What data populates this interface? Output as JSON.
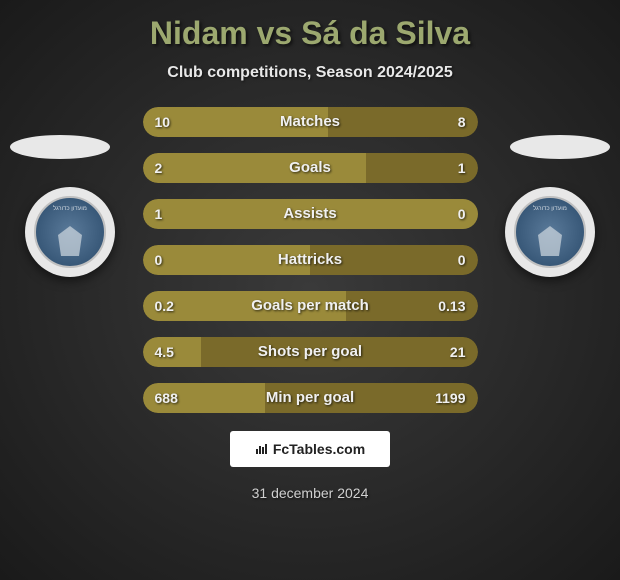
{
  "title": "Nidam vs Sá da Silva",
  "subtitle": "Club competitions, Season 2024/2025",
  "date": "31 december 2024",
  "brand": "FcTables.com",
  "colors": {
    "bar_primary": "#9a8a3a",
    "bar_secondary": "#7a6a2a",
    "bar_bg": "#2a2a2a",
    "title_color": "#9ca86f",
    "text_color": "#f0f0f0"
  },
  "stats": [
    {
      "label": "Matches",
      "left_val": "10",
      "right_val": "8",
      "left_pct": 55.5,
      "right_pct": 44.5
    },
    {
      "label": "Goals",
      "left_val": "2",
      "right_val": "1",
      "left_pct": 66.7,
      "right_pct": 33.3
    },
    {
      "label": "Assists",
      "left_val": "1",
      "right_val": "0",
      "left_pct": 100,
      "right_pct": 0
    },
    {
      "label": "Hattricks",
      "left_val": "0",
      "right_val": "0",
      "left_pct": 50,
      "right_pct": 50
    },
    {
      "label": "Goals per match",
      "left_val": "0.2",
      "right_val": "0.13",
      "left_pct": 60.6,
      "right_pct": 39.4
    },
    {
      "label": "Shots per goal",
      "left_val": "4.5",
      "right_val": "21",
      "left_pct": 17.6,
      "right_pct": 82.4
    },
    {
      "label": "Min per goal",
      "left_val": "688",
      "right_val": "1199",
      "left_pct": 36.5,
      "right_pct": 63.5
    }
  ]
}
